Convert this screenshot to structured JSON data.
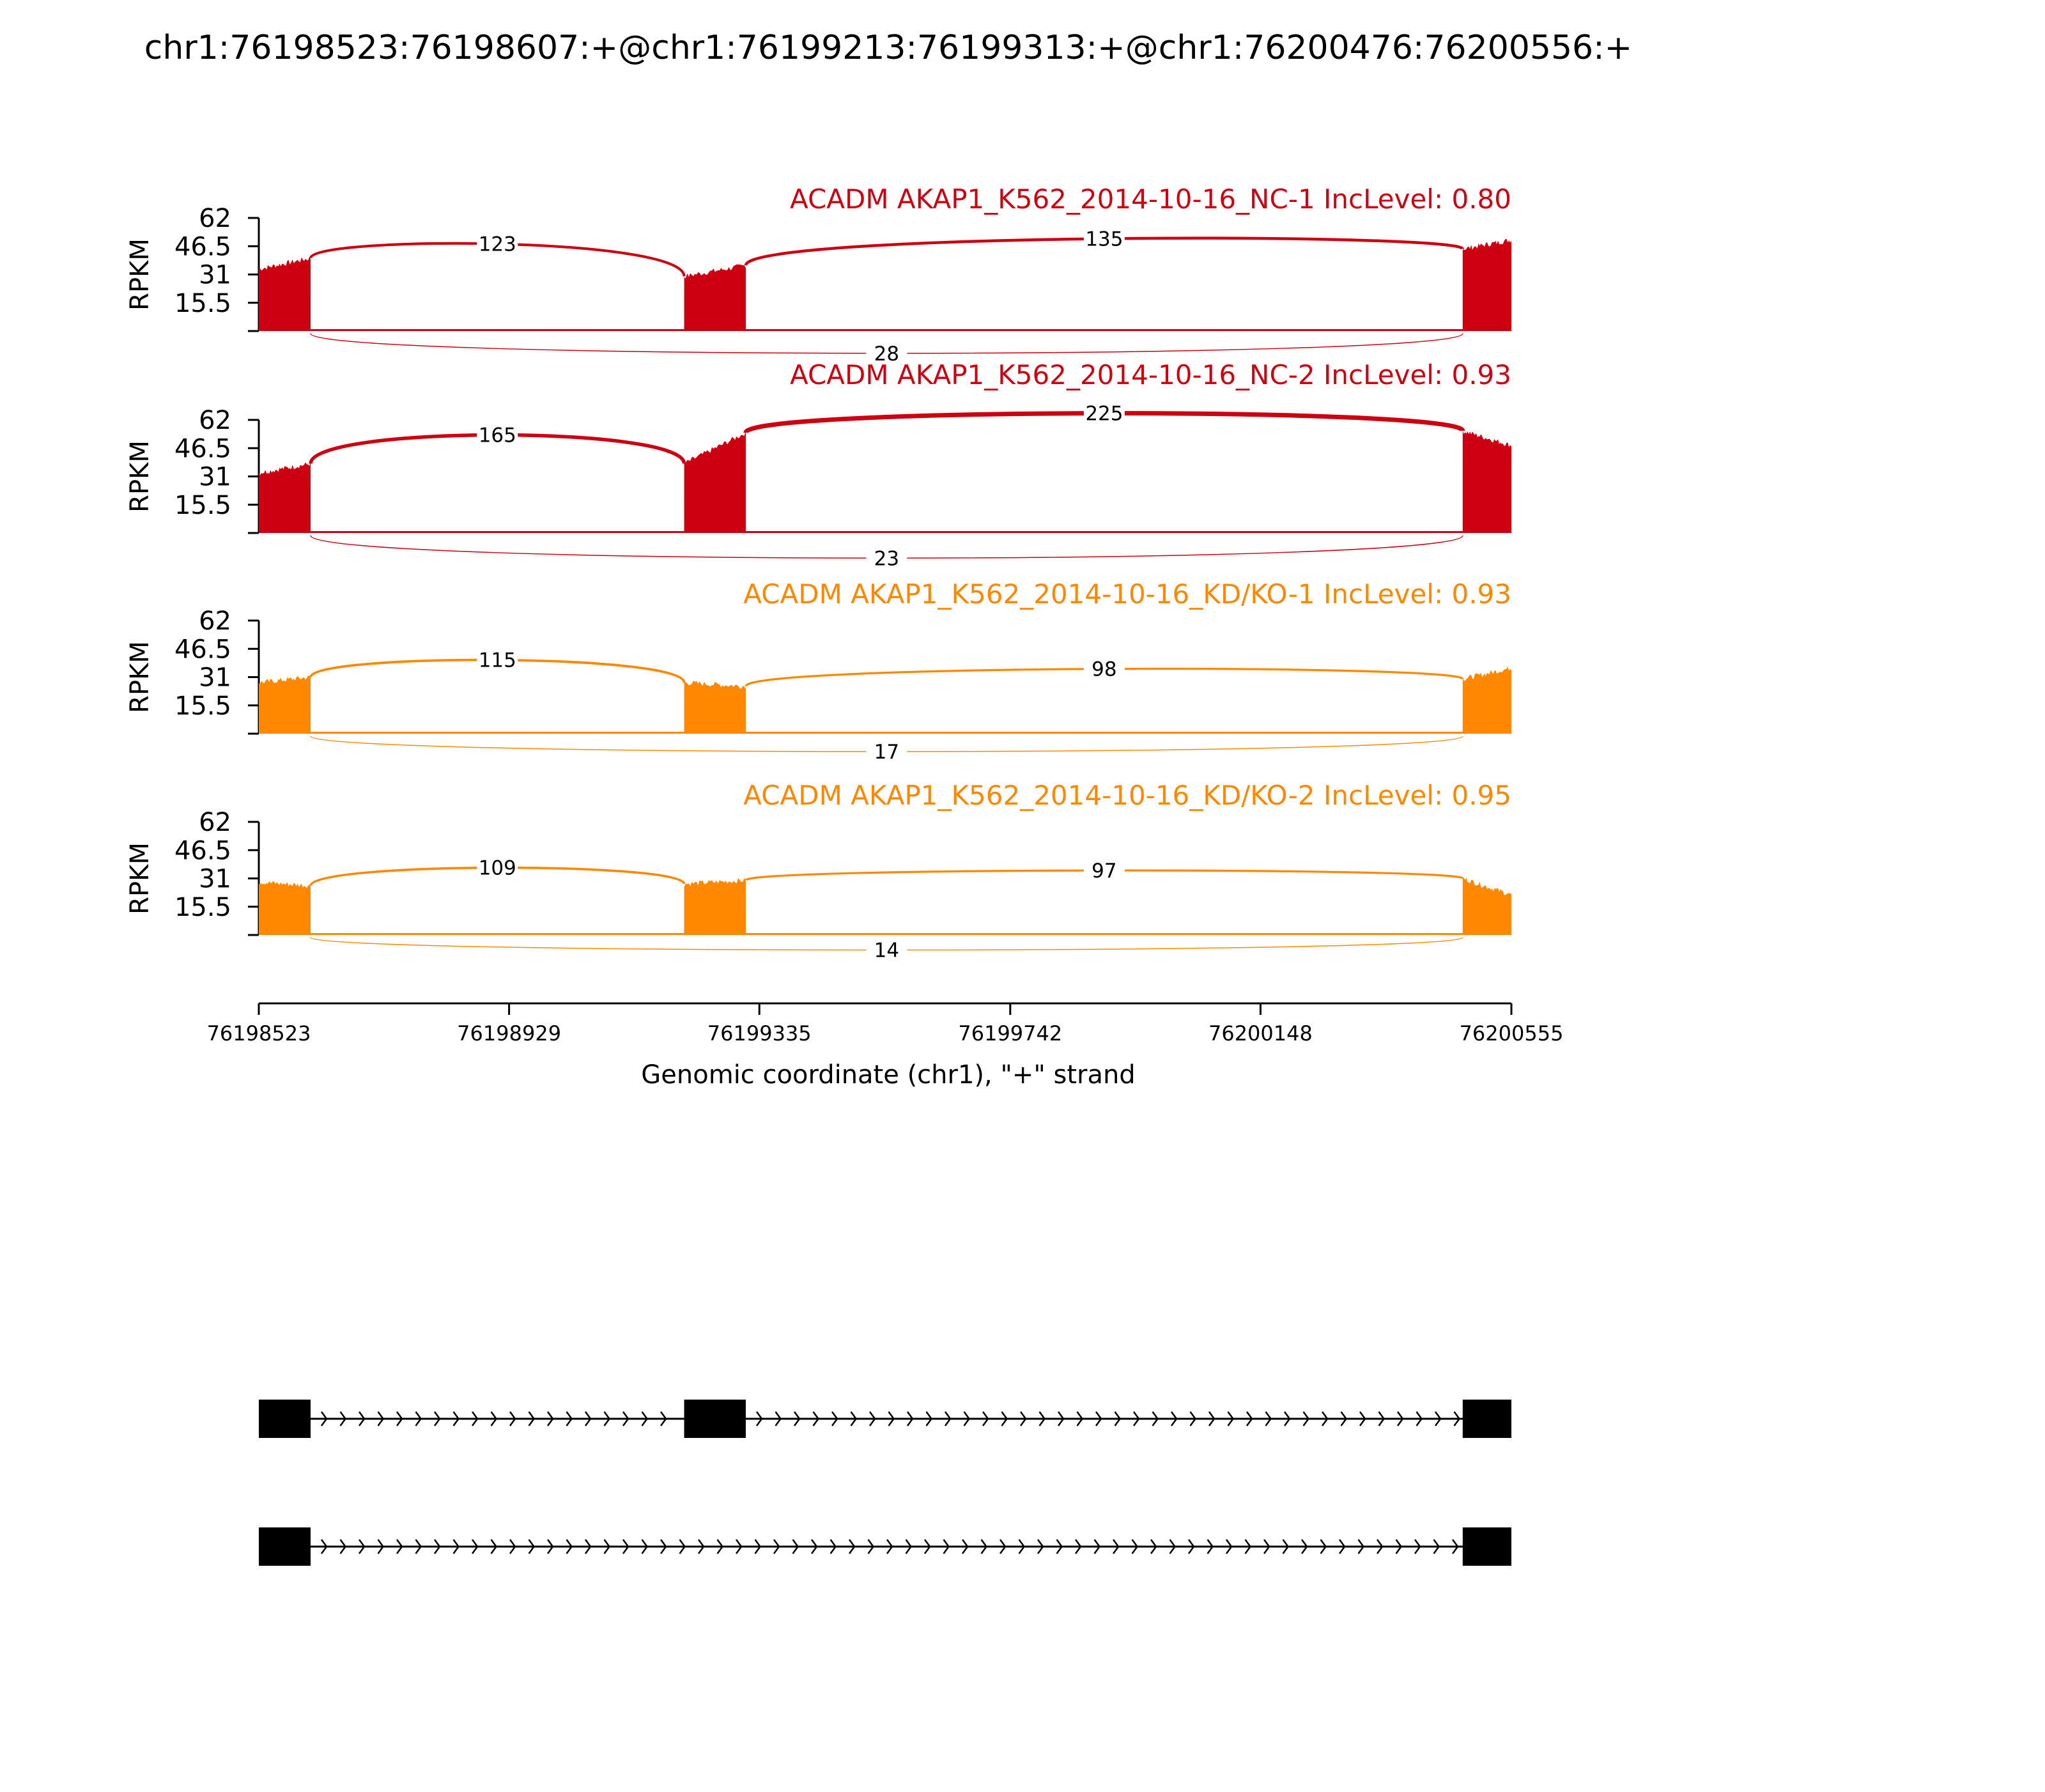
{
  "chart_data": {
    "type": "area",
    "title": "chr1:76198523:76198607:+@chr1:76199213:76199313:+@chr1:76200476:76200556:+",
    "xlabel": "Genomic coordinate (chr1), \"+\" strand",
    "ylabel": "RPKM",
    "xlim": [
      76198523,
      76200555
    ],
    "x_ticks": [
      "76198523",
      "76198929",
      "76199335",
      "76199742",
      "76200148",
      "76200555"
    ],
    "ylim": [
      0,
      62
    ],
    "y_ticks": [
      "15.5",
      "31",
      "46.5",
      "62"
    ],
    "exons": [
      [
        76198523,
        76198607
      ],
      [
        76199213,
        76199313
      ],
      [
        76200476,
        76200556
      ]
    ],
    "tracks": [
      {
        "label": "ACADM AKAP1_K562_2014-10-16_NC-1 IncLevel: 0.80",
        "color": "#cc0011",
        "exon_coverage": [
          {
            "start": 76198523,
            "end": 76198607,
            "from": 34,
            "to": 40
          },
          {
            "start": 76199213,
            "end": 76199313,
            "from": 30,
            "to": 36
          },
          {
            "start": 76200476,
            "end": 76200556,
            "from": 45,
            "to": 50
          }
        ],
        "junctions": [
          {
            "from": 76198607,
            "to": 76199213,
            "count": "123",
            "height": 52,
            "below": false
          },
          {
            "from": 76199313,
            "to": 76200476,
            "count": "135",
            "height": 54,
            "below": false
          },
          {
            "from": 76198607,
            "to": 76200476,
            "count": "28",
            "height": 15,
            "below": true
          }
        ]
      },
      {
        "label": "ACADM AKAP1_K562_2014-10-16_NC-2 IncLevel: 0.93",
        "color": "#cc0011",
        "exon_coverage": [
          {
            "start": 76198523,
            "end": 76198607,
            "from": 33,
            "to": 38
          },
          {
            "start": 76199213,
            "end": 76199313,
            "from": 38,
            "to": 55
          },
          {
            "start": 76200476,
            "end": 76200556,
            "from": 56,
            "to": 48
          }
        ],
        "junctions": [
          {
            "from": 76198607,
            "to": 76199213,
            "count": "165",
            "height": 59,
            "below": false
          },
          {
            "from": 76199313,
            "to": 76200476,
            "count": "225",
            "height": 69,
            "below": false
          },
          {
            "from": 76198607,
            "to": 76200476,
            "count": "23",
            "height": 17,
            "below": true
          }
        ]
      },
      {
        "label": "ACADM AKAP1_K562_2014-10-16_KD/KO-1 IncLevel: 0.93",
        "color": "#ff8800",
        "exon_coverage": [
          {
            "start": 76198523,
            "end": 76198607,
            "from": 28,
            "to": 31
          },
          {
            "start": 76199213,
            "end": 76199313,
            "from": 28,
            "to": 26
          },
          {
            "start": 76200476,
            "end": 76200556,
            "from": 30,
            "to": 36
          }
        ],
        "junctions": [
          {
            "from": 76198607,
            "to": 76199213,
            "count": "115",
            "height": 44,
            "below": false
          },
          {
            "from": 76199313,
            "to": 76200476,
            "count": "98",
            "height": 38,
            "below": false
          },
          {
            "from": 76198607,
            "to": 76200476,
            "count": "17",
            "height": 12,
            "below": true
          }
        ]
      },
      {
        "label": "ACADM AKAP1_K562_2014-10-16_KD/KO-2 IncLevel: 0.95",
        "color": "#ff8800",
        "exon_coverage": [
          {
            "start": 76198523,
            "end": 76198607,
            "from": 29,
            "to": 27
          },
          {
            "start": 76199213,
            "end": 76199313,
            "from": 28,
            "to": 30
          },
          {
            "start": 76200476,
            "end": 76200556,
            "from": 31,
            "to": 22
          }
        ],
        "junctions": [
          {
            "from": 76198607,
            "to": 76199213,
            "count": "109",
            "height": 40,
            "below": false
          },
          {
            "from": 76199313,
            "to": 76200476,
            "count": "97",
            "height": 37,
            "below": false
          },
          {
            "from": 76198607,
            "to": 76200476,
            "count": "14",
            "height": 10,
            "below": true
          }
        ]
      }
    ],
    "isoforms": [
      {
        "exons": [
          [
            76198523,
            76198607
          ],
          [
            76199213,
            76199313
          ],
          [
            76200476,
            76200556
          ]
        ]
      },
      {
        "exons": [
          [
            76198523,
            76198607
          ],
          [
            76200476,
            76200556
          ]
        ]
      }
    ]
  }
}
